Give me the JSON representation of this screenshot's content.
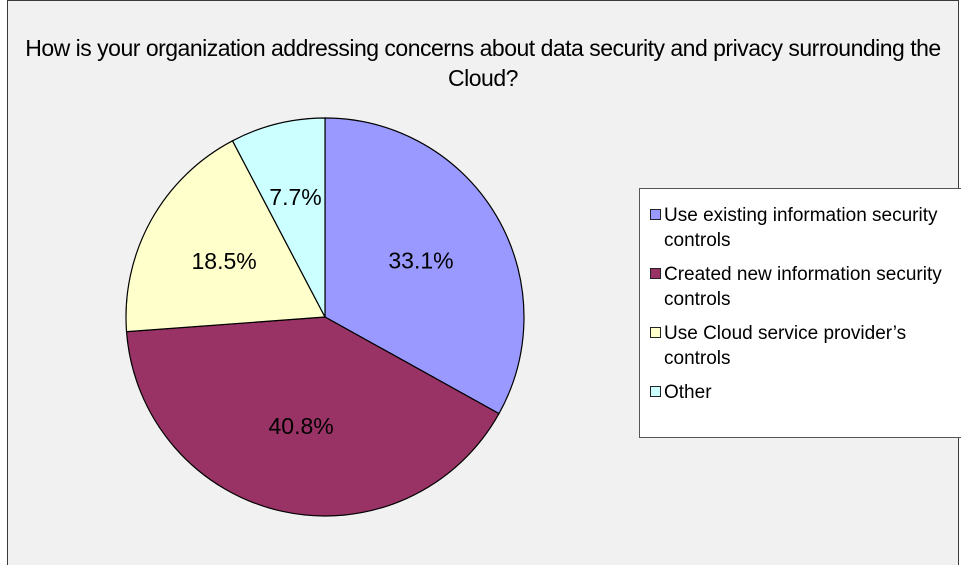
{
  "chart_data": {
    "type": "pie",
    "title": "How is your organization addressing concerns about data security and privacy surrounding the Cloud?",
    "categories": [
      "Use existing information security controls",
      "Created new information security controls",
      "Use Cloud service provider’s controls",
      "Other"
    ],
    "values": [
      33.1,
      40.8,
      18.5,
      7.7
    ],
    "labels": [
      "33.1%",
      "40.8%",
      "18.5%",
      "7.7%"
    ],
    "colors": [
      "#9999ff",
      "#993366",
      "#ffffcc",
      "#ccffff"
    ],
    "start": "top, clockwise",
    "legend_position": "right"
  }
}
